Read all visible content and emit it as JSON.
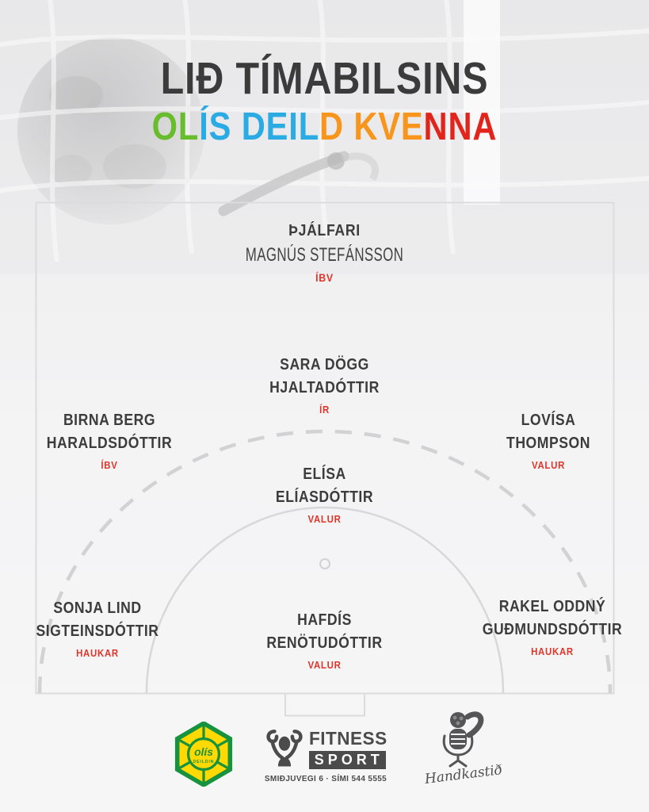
{
  "poster": {
    "title": "LIÐ TÍMABILSINS",
    "subtitle_text": "OLÍS DEILD KVENNA"
  },
  "palette": {
    "green": "#67bd2b",
    "blue": "#2aabe3",
    "orange": "#f8951d",
    "red": "#e1251c",
    "club_red": "#e0352b",
    "ink": "#3c3c3c"
  },
  "subtitle_letters": [
    {
      "ch": "O",
      "c": "green"
    },
    {
      "ch": "L",
      "c": "green"
    },
    {
      "ch": "Í",
      "c": "blue"
    },
    {
      "ch": "S",
      "c": "blue"
    },
    {
      "ch": " "
    },
    {
      "ch": "D",
      "c": "blue"
    },
    {
      "ch": "E",
      "c": "blue"
    },
    {
      "ch": "I",
      "c": "blue"
    },
    {
      "ch": "L",
      "c": "blue"
    },
    {
      "ch": "D",
      "c": "orange"
    },
    {
      "ch": " "
    },
    {
      "ch": "K",
      "c": "orange"
    },
    {
      "ch": "V",
      "c": "orange"
    },
    {
      "ch": "E",
      "c": "orange"
    },
    {
      "ch": "N",
      "c": "red"
    },
    {
      "ch": "N",
      "c": "red"
    },
    {
      "ch": "A",
      "c": "red"
    }
  ],
  "coach": {
    "role": "ÞJÁLFARI",
    "name": "MAGNÚS STEFÁNSSON",
    "club": "ÍBV"
  },
  "players": [
    {
      "position": "playmaker",
      "line1": "SARA DÖGG",
      "line2": "HJALTADÓTTIR",
      "club": "ÍR"
    },
    {
      "position": "left-back",
      "line1": "BIRNA BERG",
      "line2": "HARALDSDÓTTIR",
      "club": "ÍBV"
    },
    {
      "position": "right-back",
      "line1": "LOVÍSA",
      "line2": "THOMPSON",
      "club": "VALUR"
    },
    {
      "position": "centre",
      "line1": "ELÍSA",
      "line2": "ELÍASDÓTTIR",
      "club": "VALUR"
    },
    {
      "position": "left-wing",
      "line1": "SONJA LIND",
      "line2": "SIGTEINSDÓTTIR",
      "club": "HAUKAR"
    },
    {
      "position": "pivot",
      "line1": "HAFDÍS",
      "line2": "RENÖTUDÓTTIR",
      "club": "VALUR"
    },
    {
      "position": "right-wing",
      "line1": "RAKEL ODDNÝ",
      "line2": "GUÐMUNDSDÓTTIR",
      "club": "HAUKAR"
    }
  ],
  "sponsors": {
    "olis": {
      "name": "olís",
      "division": "DEILDIN"
    },
    "fitness": {
      "line1": "FITNESS",
      "line2": "SPORT",
      "address": "SMIÐJUVEGI 6 · SÍMI 544 5555"
    },
    "handkastid": {
      "name": "Handkastið"
    }
  }
}
